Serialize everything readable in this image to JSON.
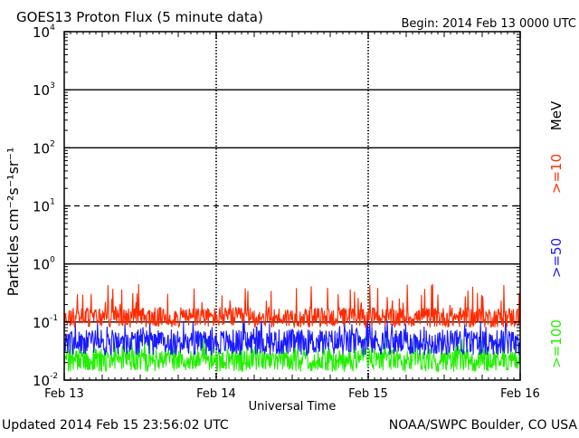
{
  "chart_data": {
    "type": "line",
    "title": "GOES13 Proton Flux (5 minute data)",
    "begin_label": "Begin: 2014 Feb 13 0000 UTC",
    "xlabel": "Universal Time",
    "ylabel": "Particles cm⁻²s⁻¹sr⁻¹",
    "y_scale": "log",
    "ylim": [
      0.01,
      10000
    ],
    "y_ticks": [
      {
        "base": "10",
        "exp": "4"
      },
      {
        "base": "10",
        "exp": "3"
      },
      {
        "base": "10",
        "exp": "2"
      },
      {
        "base": "10",
        "exp": "1"
      },
      {
        "base": "10",
        "exp": "0"
      },
      {
        "base": "10",
        "exp": "-1"
      },
      {
        "base": "10",
        "exp": "-2"
      }
    ],
    "x_ticks": [
      "Feb 13",
      "Feb 14",
      "Feb 15",
      "Feb 16"
    ],
    "x_range_days": [
      0,
      3
    ],
    "grid": "solid decade lines at 10^3, 10^2, 10^0, 10^-1; dashed at 10^1; dashed day lines",
    "legend_unit": "MeV",
    "series": [
      {
        "name": ">=10",
        "color": "#ff2a00",
        "baseline": 0.12,
        "spread": 0.35,
        "spike_prob": 0.08,
        "spike_max": 0.45
      },
      {
        "name": ">=50",
        "color": "#1a1aff",
        "baseline": 0.045,
        "spread": 0.45,
        "spike_prob": 0.08,
        "spike_max": 0.11
      },
      {
        "name": ">=100",
        "color": "#22ee00",
        "baseline": 0.022,
        "spread": 0.4,
        "spike_prob": 0.08,
        "spike_max": 0.06
      }
    ]
  },
  "footer": {
    "updated": "Updated 2014 Feb 15 23:56:02 UTC",
    "credit": "NOAA/SWPC Boulder, CO USA"
  }
}
